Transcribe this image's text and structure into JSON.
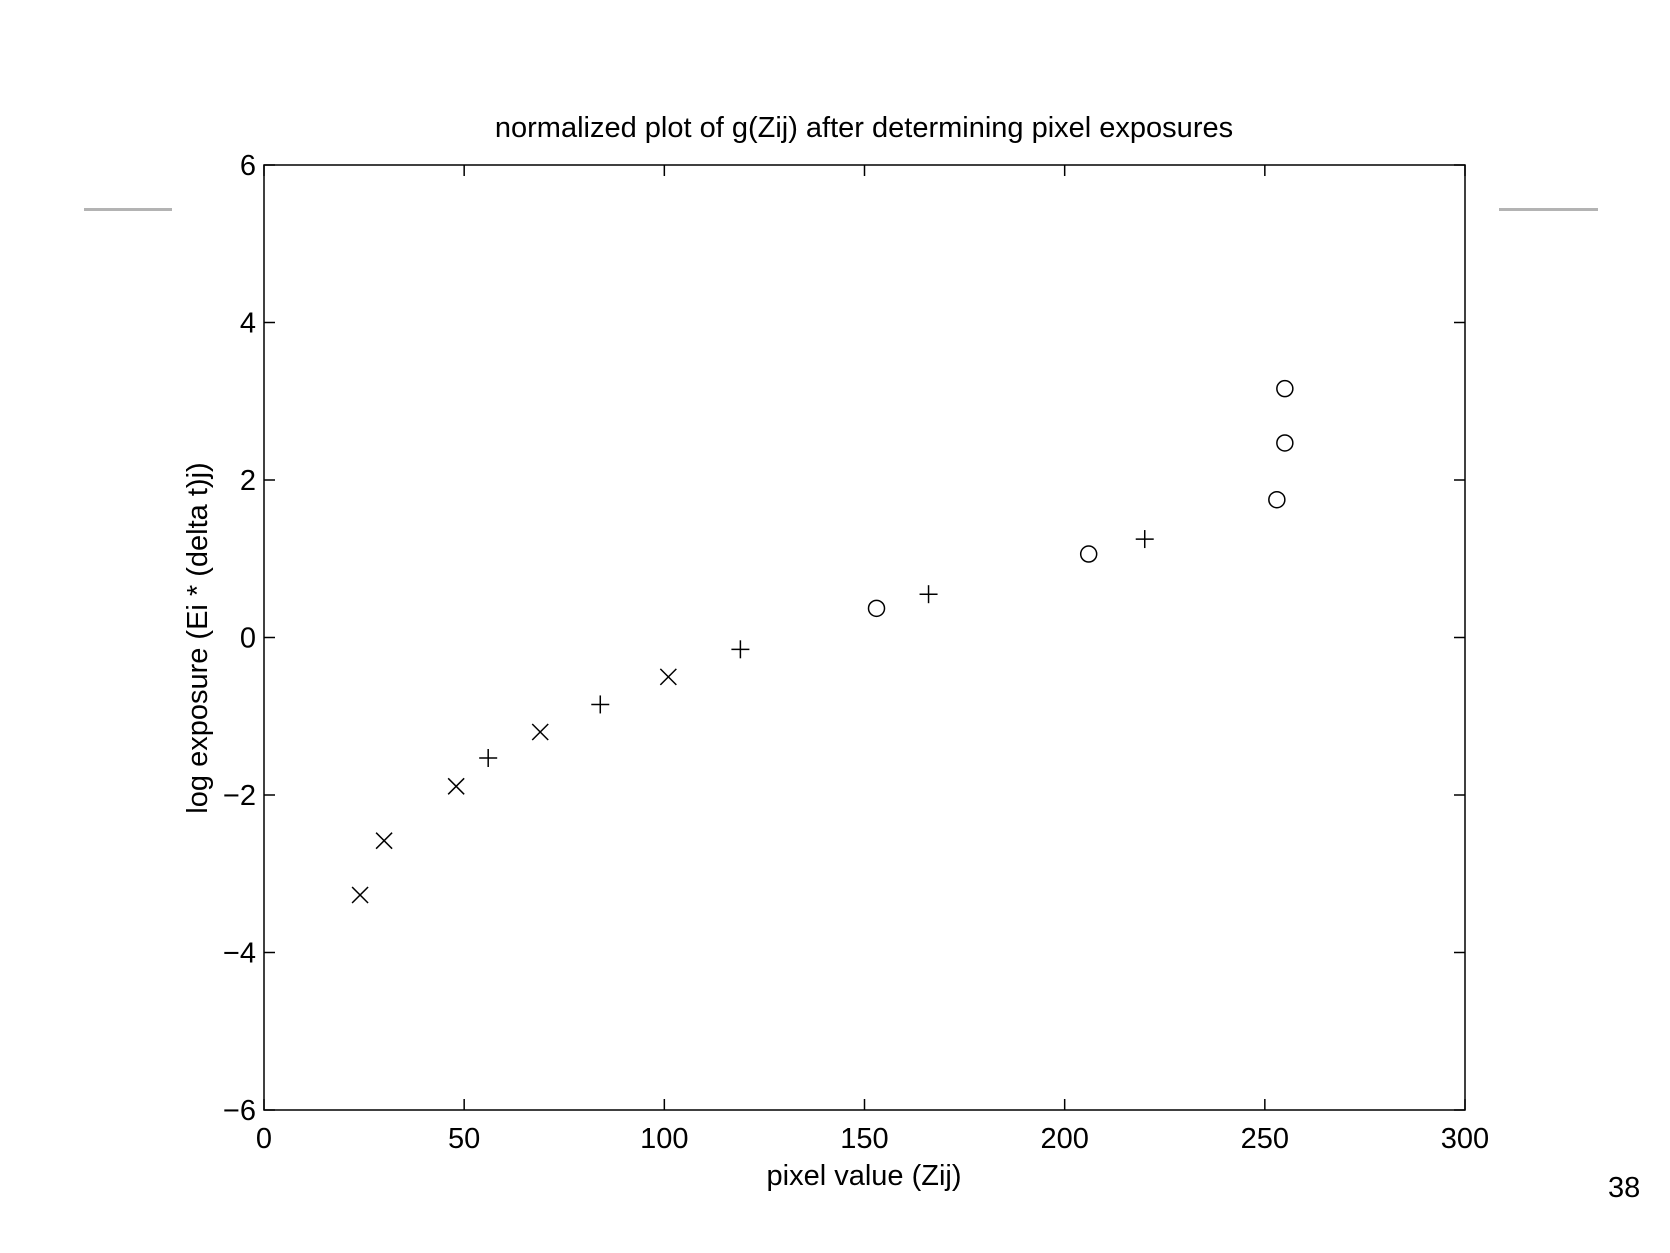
{
  "slide": {
    "page_number": "38",
    "rule_color": "#b3b3b3"
  },
  "chart_data": {
    "type": "scatter",
    "title": "normalized plot of g(Zij) after determining pixel exposures",
    "xlabel": "pixel value (Zij)",
    "ylabel": "log exposure (Ei * (delta t)j)",
    "xlim": [
      0,
      300
    ],
    "ylim": [
      -6,
      6
    ],
    "xticks": [
      0,
      50,
      100,
      150,
      200,
      250,
      300
    ],
    "yticks": [
      -6,
      -4,
      -2,
      0,
      2,
      4,
      6
    ],
    "xtick_labels": [
      "0",
      "50",
      "100",
      "150",
      "200",
      "250",
      "300"
    ],
    "ytick_labels": [
      "−6",
      "−4",
      "−2",
      "0",
      "2",
      "4",
      "6"
    ],
    "grid": false,
    "series": [
      {
        "marker": "x",
        "x": [
          24,
          30,
          48,
          69,
          101
        ],
        "y": [
          -3.27,
          -2.58,
          -1.89,
          -1.2,
          -0.5
        ]
      },
      {
        "marker": "+",
        "x": [
          56,
          84,
          119,
          166,
          220
        ],
        "y": [
          -1.53,
          -0.85,
          -0.15,
          0.55,
          1.25
        ]
      },
      {
        "marker": "o",
        "x": [
          153,
          206,
          253,
          255,
          255
        ],
        "y": [
          0.37,
          1.06,
          1.75,
          2.47,
          3.16
        ]
      }
    ]
  }
}
